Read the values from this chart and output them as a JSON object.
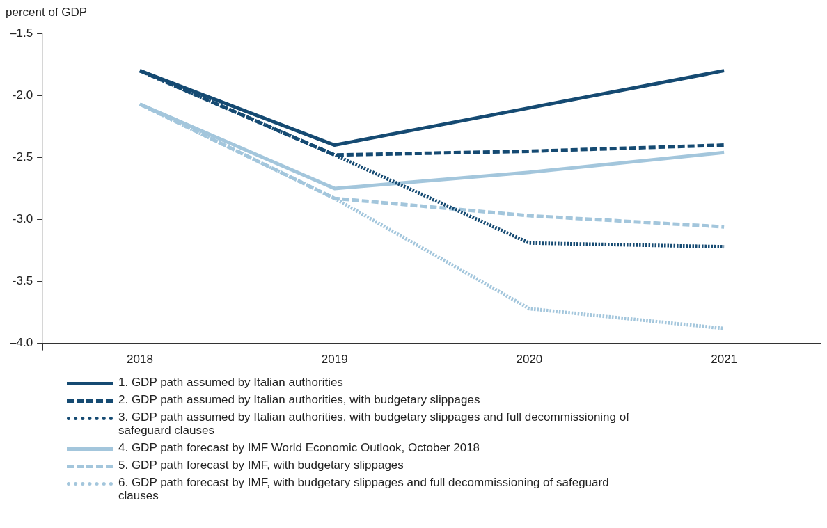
{
  "chart_data": {
    "type": "line",
    "ylabel": "percent of GDP",
    "categories": [
      "2018",
      "2019",
      "2020",
      "2021"
    ],
    "series": [
      {
        "name": "1. GDP path assumed by Italian authorities",
        "color": "#154a72",
        "line_style": "solid",
        "values": [
          -1.8,
          -2.4,
          -2.1,
          -1.8
        ]
      },
      {
        "name": "2. GDP path assumed by Italian authorities, with budgetary slippages",
        "color": "#154a72",
        "line_style": "dashed",
        "values": [
          -1.8,
          -2.48,
          -2.45,
          -2.4
        ]
      },
      {
        "name": "3. GDP path assumed by Italian authorities, with budgetary slippages and full decommissioning of safeguard clauses",
        "color": "#154a72",
        "line_style": "dotted",
        "values": [
          -1.8,
          -2.48,
          -3.19,
          -3.22
        ]
      },
      {
        "name": "4. GDP path forecast by IMF World Economic Outlook, October 2018",
        "color": "#a3c6dc",
        "line_style": "solid",
        "values": [
          -2.07,
          -2.75,
          -2.62,
          -2.46
        ]
      },
      {
        "name": "5. GDP path forecast by IMF, with budgetary slippages",
        "color": "#a3c6dc",
        "line_style": "dashed",
        "values": [
          -2.07,
          -2.83,
          -2.97,
          -3.06
        ]
      },
      {
        "name": "6. GDP path forecast by IMF, with budgetary slippages and full decommissioning of safeguard clauses",
        "color": "#a3c6dc",
        "line_style": "dotted",
        "values": [
          -2.07,
          -2.83,
          -3.72,
          -3.88
        ]
      }
    ],
    "ylim": [
      -4.0,
      -1.5
    ],
    "yticks": [
      {
        "value": -1.5,
        "label": "–1.5"
      },
      {
        "value": -2,
        "label": "-2.0"
      },
      {
        "value": -2.5,
        "label": "-2.5"
      },
      {
        "value": -3,
        "label": "-3.0"
      },
      {
        "value": -3.5,
        "label": "-3.5"
      },
      {
        "value": -4,
        "label": "–4.0"
      }
    ],
    "grid": false,
    "legend": "bottom",
    "marker": "none"
  }
}
